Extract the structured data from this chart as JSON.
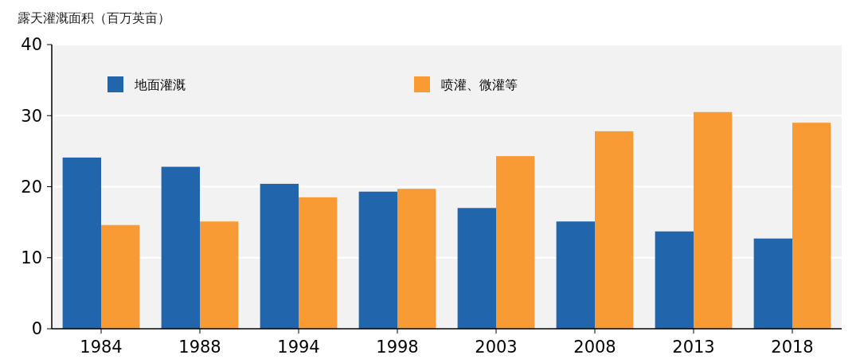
{
  "chart_data": {
    "type": "bar",
    "ylabel": "露天灌溉面积（百万英亩）",
    "categories": [
      "1984",
      "1988",
      "1994",
      "1998",
      "2003",
      "2008",
      "2013",
      "2018"
    ],
    "series": [
      {
        "name": "地面灌溉",
        "color": "#2166ac",
        "values": [
          24.1,
          22.8,
          20.4,
          19.3,
          17.0,
          15.1,
          13.7,
          12.7
        ]
      },
      {
        "name": "喷灌、微灌等",
        "color": "#f99b35",
        "values": [
          14.6,
          15.1,
          18.5,
          19.7,
          24.3,
          27.8,
          30.5,
          29.0
        ]
      }
    ],
    "ylim": [
      0,
      40
    ],
    "yticks": [
      0,
      10,
      20,
      30,
      40
    ],
    "grid": "y",
    "legend": "top"
  }
}
